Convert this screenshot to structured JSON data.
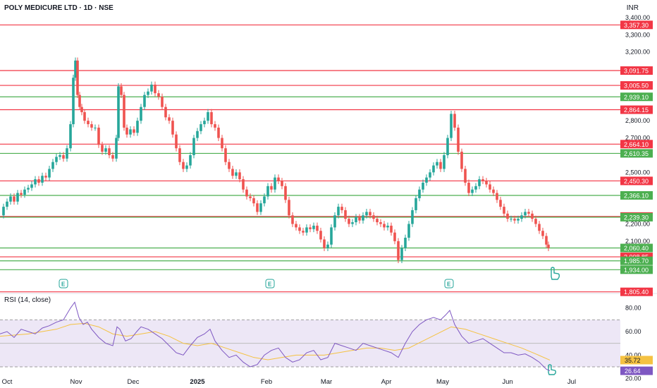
{
  "header": {
    "title": "POLY MEDICURE LTD · 1D · NSE",
    "currency": "INR"
  },
  "rsi": {
    "title": "RSI (14, close)",
    "ticks": [
      "80.00",
      "60.00",
      "40.00",
      "20.00"
    ],
    "value_yellow": "35.72",
    "value_purple": "26.64"
  },
  "colors": {
    "red": "#f23645",
    "green": "#4caf50",
    "up": "#26a69a",
    "down": "#ef5350",
    "rsi_line": "#7e57c2",
    "rsi_ma": "#f5c242",
    "rsi_band": "#ede7f6"
  },
  "event_marker": "E",
  "icons": [
    "pointer-hand-icon"
  ],
  "chart_data": {
    "type": "candlestick",
    "title": "POLY MEDICURE LTD · 1D · NSE",
    "ylabel": "INR",
    "ylim": [
      1800,
      3420
    ],
    "x_ticks": [
      "Oct",
      "Nov",
      "Dec",
      "2025",
      "Feb",
      "Mar",
      "Apr",
      "May",
      "Jun",
      "Jul"
    ],
    "y_ticks": [
      "3,400.00",
      "3,300.00",
      "3,200.00",
      "2,800.00",
      "2,700.00",
      "2,500.00",
      "2,200.00",
      "2,100.00"
    ],
    "levels": [
      {
        "value": 3357.3,
        "label": "3,357.30",
        "color": "red"
      },
      {
        "value": 3091.75,
        "label": "3,091.75",
        "color": "red"
      },
      {
        "value": 3005.5,
        "label": "3,005.50",
        "color": "red"
      },
      {
        "value": 2939.1,
        "label": "2,939.10",
        "color": "green"
      },
      {
        "value": 2864.15,
        "label": "2,864.15",
        "color": "red"
      },
      {
        "value": 2664.1,
        "label": "2,664.10",
        "color": "red"
      },
      {
        "value": 2610.35,
        "label": "2,610.35",
        "color": "green"
      },
      {
        "value": 2450.3,
        "label": "2,450.30",
        "color": "red"
      },
      {
        "value": 2366.1,
        "label": "2,366.10",
        "color": "green"
      },
      {
        "value": 2243.35,
        "label": "2,243.35",
        "color": "red"
      },
      {
        "value": 2239.3,
        "label": "2,239.30",
        "color": "green"
      },
      {
        "value": 2060.4,
        "label": "2,060.40",
        "color": "green"
      },
      {
        "value": 2008.85,
        "label": "2,008.85",
        "color": "red"
      },
      {
        "value": 1985.7,
        "label": "1,985.70",
        "color": "green"
      },
      {
        "value": 1934.0,
        "label": "1,934.00",
        "color": "green"
      },
      {
        "value": 1805.4,
        "label": "1,805.40",
        "color": "red"
      }
    ],
    "close_path": [
      [
        0,
        2250
      ],
      [
        5,
        2300
      ],
      [
        10,
        2330
      ],
      [
        15,
        2360
      ],
      [
        20,
        2330
      ],
      [
        25,
        2380
      ],
      [
        30,
        2370
      ],
      [
        35,
        2400
      ],
      [
        40,
        2410
      ],
      [
        45,
        2430
      ],
      [
        50,
        2460
      ],
      [
        55,
        2440
      ],
      [
        60,
        2480
      ],
      [
        65,
        2470
      ],
      [
        70,
        2520
      ],
      [
        75,
        2560
      ],
      [
        80,
        2590
      ],
      [
        85,
        2600
      ],
      [
        90,
        2580
      ],
      [
        95,
        2640
      ],
      [
        100,
        2780
      ],
      [
        104,
        3050
      ],
      [
        107,
        3150
      ],
      [
        110,
        2950
      ],
      [
        113,
        2880
      ],
      [
        116,
        2850
      ],
      [
        120,
        2800
      ],
      [
        125,
        2780
      ],
      [
        130,
        2760
      ],
      [
        135,
        2760
      ],
      [
        140,
        2660
      ],
      [
        145,
        2620
      ],
      [
        150,
        2640
      ],
      [
        155,
        2600
      ],
      [
        160,
        2580
      ],
      [
        165,
        2700
      ],
      [
        168,
        3000
      ],
      [
        172,
        2950
      ],
      [
        176,
        2760
      ],
      [
        180,
        2720
      ],
      [
        185,
        2750
      ],
      [
        190,
        2730
      ],
      [
        195,
        2800
      ],
      [
        200,
        2880
      ],
      [
        205,
        2950
      ],
      [
        210,
        2970
      ],
      [
        215,
        3010
      ],
      [
        220,
        2960
      ],
      [
        225,
        2940
      ],
      [
        230,
        2880
      ],
      [
        235,
        2820
      ],
      [
        240,
        2800
      ],
      [
        245,
        2720
      ],
      [
        250,
        2640
      ],
      [
        255,
        2560
      ],
      [
        260,
        2520
      ],
      [
        265,
        2540
      ],
      [
        270,
        2600
      ],
      [
        275,
        2700
      ],
      [
        280,
        2740
      ],
      [
        285,
        2780
      ],
      [
        290,
        2800
      ],
      [
        295,
        2850
      ],
      [
        300,
        2780
      ],
      [
        305,
        2760
      ],
      [
        310,
        2700
      ],
      [
        315,
        2640
      ],
      [
        320,
        2560
      ],
      [
        325,
        2520
      ],
      [
        330,
        2480
      ],
      [
        335,
        2500
      ],
      [
        340,
        2460
      ],
      [
        345,
        2400
      ],
      [
        350,
        2360
      ],
      [
        355,
        2350
      ],
      [
        360,
        2320
      ],
      [
        365,
        2270
      ],
      [
        370,
        2320
      ],
      [
        375,
        2360
      ],
      [
        380,
        2420
      ],
      [
        385,
        2400
      ],
      [
        390,
        2470
      ],
      [
        395,
        2450
      ],
      [
        400,
        2420
      ],
      [
        405,
        2340
      ],
      [
        410,
        2250
      ],
      [
        415,
        2200
      ],
      [
        420,
        2180
      ],
      [
        425,
        2160
      ],
      [
        430,
        2150
      ],
      [
        435,
        2180
      ],
      [
        440,
        2170
      ],
      [
        445,
        2190
      ],
      [
        450,
        2160
      ],
      [
        455,
        2110
      ],
      [
        460,
        2060
      ],
      [
        465,
        2080
      ],
      [
        470,
        2180
      ],
      [
        475,
        2250
      ],
      [
        480,
        2300
      ],
      [
        485,
        2280
      ],
      [
        490,
        2230
      ],
      [
        495,
        2200
      ],
      [
        500,
        2210
      ],
      [
        505,
        2240
      ],
      [
        510,
        2220
      ],
      [
        515,
        2250
      ],
      [
        520,
        2270
      ],
      [
        525,
        2250
      ],
      [
        530,
        2230
      ],
      [
        535,
        2210
      ],
      [
        540,
        2200
      ],
      [
        545,
        2180
      ],
      [
        550,
        2190
      ],
      [
        555,
        2150
      ],
      [
        560,
        2100
      ],
      [
        565,
        1990
      ],
      [
        570,
        2060
      ],
      [
        575,
        2120
      ],
      [
        580,
        2200
      ],
      [
        585,
        2280
      ],
      [
        590,
        2350
      ],
      [
        595,
        2400
      ],
      [
        600,
        2440
      ],
      [
        605,
        2470
      ],
      [
        610,
        2500
      ],
      [
        615,
        2540
      ],
      [
        620,
        2560
      ],
      [
        625,
        2520
      ],
      [
        630,
        2600
      ],
      [
        635,
        2700
      ],
      [
        640,
        2840
      ],
      [
        645,
        2760
      ],
      [
        650,
        2620
      ],
      [
        655,
        2520
      ],
      [
        660,
        2440
      ],
      [
        665,
        2380
      ],
      [
        670,
        2400
      ],
      [
        675,
        2420
      ],
      [
        680,
        2460
      ],
      [
        685,
        2450
      ],
      [
        690,
        2430
      ],
      [
        695,
        2400
      ],
      [
        700,
        2380
      ],
      [
        705,
        2340
      ],
      [
        710,
        2300
      ],
      [
        715,
        2260
      ],
      [
        720,
        2230
      ],
      [
        725,
        2230
      ],
      [
        730,
        2220
      ],
      [
        735,
        2230
      ],
      [
        740,
        2250
      ],
      [
        745,
        2270
      ],
      [
        750,
        2260
      ],
      [
        755,
        2230
      ],
      [
        760,
        2200
      ],
      [
        765,
        2160
      ],
      [
        770,
        2130
      ],
      [
        775,
        2080
      ],
      [
        778,
        2060
      ]
    ],
    "rsi_path": [
      [
        0,
        58
      ],
      [
        10,
        60
      ],
      [
        20,
        55
      ],
      [
        30,
        62
      ],
      [
        40,
        60
      ],
      [
        50,
        58
      ],
      [
        60,
        63
      ],
      [
        70,
        65
      ],
      [
        80,
        68
      ],
      [
        90,
        70
      ],
      [
        100,
        80
      ],
      [
        106,
        85
      ],
      [
        112,
        72
      ],
      [
        118,
        66
      ],
      [
        124,
        68
      ],
      [
        130,
        62
      ],
      [
        140,
        55
      ],
      [
        150,
        50
      ],
      [
        160,
        48
      ],
      [
        166,
        64
      ],
      [
        170,
        62
      ],
      [
        178,
        52
      ],
      [
        186,
        54
      ],
      [
        194,
        60
      ],
      [
        200,
        64
      ],
      [
        210,
        62
      ],
      [
        220,
        58
      ],
      [
        230,
        54
      ],
      [
        240,
        48
      ],
      [
        250,
        42
      ],
      [
        260,
        40
      ],
      [
        270,
        48
      ],
      [
        280,
        55
      ],
      [
        290,
        58
      ],
      [
        298,
        62
      ],
      [
        305,
        52
      ],
      [
        315,
        44
      ],
      [
        325,
        38
      ],
      [
        335,
        40
      ],
      [
        345,
        34
      ],
      [
        355,
        30
      ],
      [
        365,
        32
      ],
      [
        375,
        40
      ],
      [
        385,
        44
      ],
      [
        395,
        46
      ],
      [
        405,
        38
      ],
      [
        415,
        34
      ],
      [
        425,
        36
      ],
      [
        435,
        42
      ],
      [
        445,
        44
      ],
      [
        455,
        36
      ],
      [
        465,
        38
      ],
      [
        475,
        50
      ],
      [
        485,
        48
      ],
      [
        495,
        46
      ],
      [
        505,
        44
      ],
      [
        515,
        50
      ],
      [
        525,
        48
      ],
      [
        535,
        46
      ],
      [
        545,
        44
      ],
      [
        555,
        42
      ],
      [
        565,
        38
      ],
      [
        575,
        50
      ],
      [
        585,
        60
      ],
      [
        595,
        66
      ],
      [
        605,
        70
      ],
      [
        615,
        72
      ],
      [
        625,
        70
      ],
      [
        632,
        74
      ],
      [
        638,
        78
      ],
      [
        645,
        66
      ],
      [
        655,
        56
      ],
      [
        665,
        50
      ],
      [
        675,
        52
      ],
      [
        685,
        54
      ],
      [
        695,
        50
      ],
      [
        705,
        46
      ],
      [
        715,
        42
      ],
      [
        725,
        42
      ],
      [
        735,
        40
      ],
      [
        745,
        41
      ],
      [
        755,
        38
      ],
      [
        765,
        34
      ],
      [
        775,
        28
      ],
      [
        780,
        26.64
      ]
    ],
    "rsi_ma_path": [
      [
        0,
        56
      ],
      [
        40,
        58
      ],
      [
        80,
        62
      ],
      [
        100,
        66
      ],
      [
        120,
        67
      ],
      [
        140,
        64
      ],
      [
        160,
        58
      ],
      [
        180,
        56
      ],
      [
        200,
        58
      ],
      [
        220,
        60
      ],
      [
        240,
        56
      ],
      [
        260,
        50
      ],
      [
        280,
        48
      ],
      [
        300,
        50
      ],
      [
        320,
        46
      ],
      [
        340,
        42
      ],
      [
        360,
        38
      ],
      [
        380,
        36
      ],
      [
        400,
        38
      ],
      [
        420,
        40
      ],
      [
        440,
        40
      ],
      [
        460,
        40
      ],
      [
        480,
        42
      ],
      [
        500,
        44
      ],
      [
        520,
        46
      ],
      [
        540,
        46
      ],
      [
        560,
        44
      ],
      [
        580,
        46
      ],
      [
        600,
        52
      ],
      [
        620,
        58
      ],
      [
        640,
        64
      ],
      [
        660,
        62
      ],
      [
        680,
        58
      ],
      [
        700,
        54
      ],
      [
        720,
        50
      ],
      [
        740,
        46
      ],
      [
        760,
        41
      ],
      [
        780,
        35.72
      ]
    ],
    "earnings_x": [
      90,
      383,
      637
    ]
  }
}
